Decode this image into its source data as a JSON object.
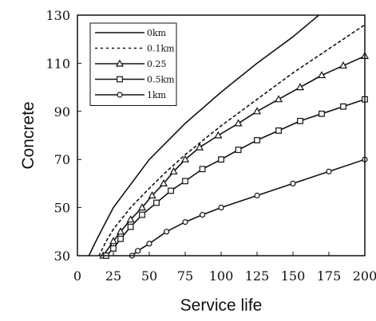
{
  "chart_data": {
    "type": "line",
    "title": "",
    "xlabel": "Service life",
    "ylabel": "Concrete",
    "xlim": [
      0,
      200
    ],
    "ylim": [
      30,
      130
    ],
    "x_ticks": [
      "0",
      "25",
      "50",
      "75",
      "100",
      "125",
      "150",
      "175",
      "200"
    ],
    "y_ticks": [
      "30",
      "50",
      "70",
      "90",
      "110",
      "130"
    ],
    "grid": false,
    "legend_position": "top-left",
    "series": [
      {
        "name": "0km",
        "style": "solid",
        "marker": "none",
        "color": "#111111",
        "points": [
          [
            8,
            30
          ],
          [
            12,
            35
          ],
          [
            18,
            42
          ],
          [
            25,
            50
          ],
          [
            35,
            58
          ],
          [
            50,
            70
          ],
          [
            75,
            85
          ],
          [
            100,
            98
          ],
          [
            125,
            110
          ],
          [
            150,
            121
          ],
          [
            162,
            127
          ],
          [
            168,
            130
          ]
        ]
      },
      {
        "name": "0.1km",
        "style": "dotted",
        "marker": "none",
        "color": "#111111",
        "points": [
          [
            15,
            30
          ],
          [
            20,
            36
          ],
          [
            25,
            41
          ],
          [
            37,
            50
          ],
          [
            50,
            58
          ],
          [
            62,
            65
          ],
          [
            75,
            72
          ],
          [
            100,
            84
          ],
          [
            125,
            95
          ],
          [
            150,
            106
          ],
          [
            175,
            116
          ],
          [
            200,
            126
          ]
        ]
      },
      {
        "name": "0.25",
        "style": "solid",
        "marker": "triangle",
        "color": "#111111",
        "points": [
          [
            18,
            30
          ],
          [
            25,
            36
          ],
          [
            30,
            40
          ],
          [
            37,
            45
          ],
          [
            45,
            50
          ],
          [
            52,
            55
          ],
          [
            60,
            60
          ],
          [
            67,
            65
          ],
          [
            75,
            70
          ],
          [
            85,
            75
          ],
          [
            98,
            80
          ],
          [
            112,
            85
          ],
          [
            125,
            90
          ],
          [
            140,
            95
          ],
          [
            155,
            100
          ],
          [
            170,
            105
          ],
          [
            185,
            109
          ],
          [
            200,
            113
          ]
        ]
      },
      {
        "name": "0.5km",
        "style": "solid",
        "marker": "square",
        "color": "#111111",
        "points": [
          [
            20,
            30
          ],
          [
            25,
            33
          ],
          [
            30,
            37
          ],
          [
            37,
            42
          ],
          [
            45,
            47
          ],
          [
            55,
            52
          ],
          [
            65,
            57
          ],
          [
            75,
            61
          ],
          [
            87,
            66
          ],
          [
            100,
            70
          ],
          [
            112,
            74
          ],
          [
            125,
            78
          ],
          [
            140,
            82
          ],
          [
            155,
            86
          ],
          [
            170,
            89
          ],
          [
            185,
            92
          ],
          [
            200,
            95
          ]
        ]
      },
      {
        "name": "1km",
        "style": "solid",
        "marker": "circle",
        "color": "#111111",
        "points": [
          [
            38,
            30
          ],
          [
            42,
            32
          ],
          [
            50,
            35
          ],
          [
            62,
            40
          ],
          [
            75,
            44
          ],
          [
            87,
            47
          ],
          [
            100,
            50
          ],
          [
            125,
            55
          ],
          [
            150,
            60
          ],
          [
            175,
            65
          ],
          [
            200,
            70
          ]
        ]
      }
    ]
  }
}
